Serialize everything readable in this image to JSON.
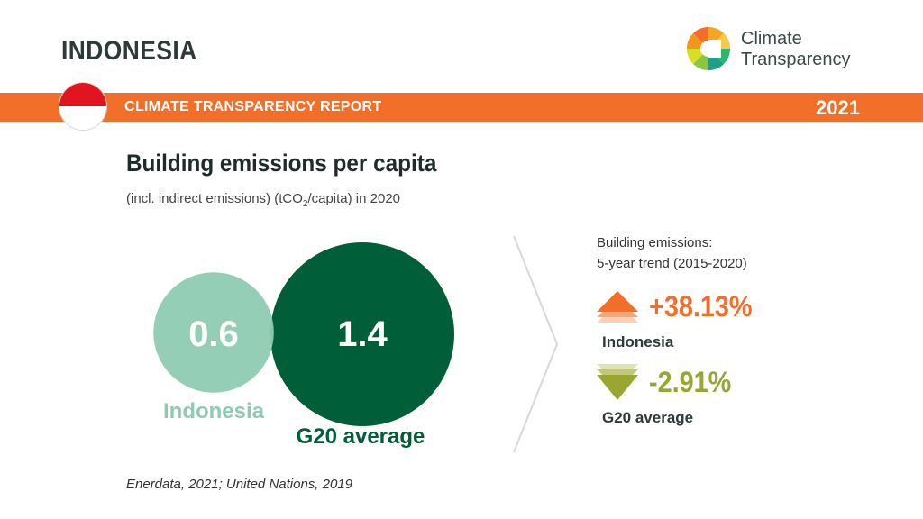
{
  "header": {
    "country": "INDONESIA",
    "logo_line1": "Climate",
    "logo_line2": "Transparency",
    "report_label": "CLIMATE TRANSPARENCY REPORT",
    "year": "2021"
  },
  "colors": {
    "orange": "#f26f2a",
    "light_green": "#8fcbb2",
    "dark_green": "#005e38",
    "olive": "#9aa632"
  },
  "icons": {
    "flag": "indonesia-flag-icon",
    "logo": "climate-transparency-logo",
    "trend_up": "trend-up-icon",
    "trend_down": "trend-down-icon"
  },
  "chart": {
    "title": "Building emissions per capita",
    "subtitle_pre": "(incl. indirect emissions) (tCO",
    "subtitle_sub": "2",
    "subtitle_post": "/capita) in 2020"
  },
  "chart_data": {
    "type": "bubble",
    "title": "Building emissions per capita",
    "unit": "tCO2/capita",
    "year": 2020,
    "categories": [
      "Indonesia",
      "G20 average"
    ],
    "values": [
      0.6,
      1.4
    ],
    "value_labels": [
      "0.6",
      "1.4"
    ]
  },
  "trend": {
    "title_line1": "Building emissions:",
    "title_line2": "5-year trend (2015-2020)",
    "items": [
      {
        "name": "Indonesia",
        "value": "+38.13%",
        "direction": "up"
      },
      {
        "name": "G20 average",
        "value": "-2.91%",
        "direction": "down"
      }
    ]
  },
  "source": "Enerdata, 2021; United Nations, 2019"
}
